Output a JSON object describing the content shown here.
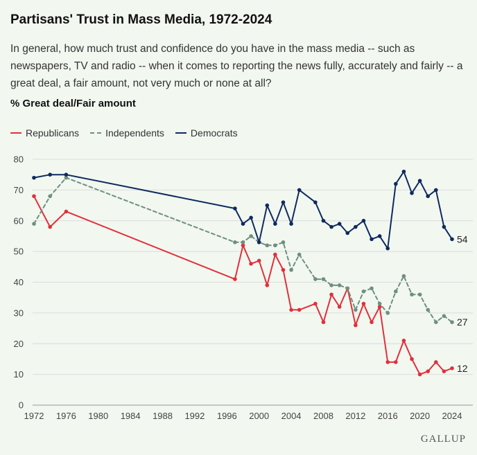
{
  "chart_data": {
    "type": "line",
    "title": "Partisans' Trust in Mass Media, 1972-2024",
    "subtitle": "In general, how much trust and confidence do you have in the mass media -- such as newspapers, TV and radio -- when it comes to reporting the news fully, accurately and fairly -- a great deal, a fair amount, not very much or none at all?",
    "measure_label": "% Great deal/Fair amount",
    "xlabel": "",
    "ylabel": "",
    "x_ticks": [
      1972,
      1976,
      1980,
      1984,
      1988,
      1992,
      1996,
      2000,
      2004,
      2008,
      2012,
      2016,
      2020,
      2024
    ],
    "y_ticks": [
      0,
      10,
      20,
      30,
      40,
      50,
      60,
      70,
      80
    ],
    "xlim": [
      1972,
      2024
    ],
    "ylim": [
      0,
      80
    ],
    "grid": true,
    "legend_position": "top-left",
    "series": [
      {
        "name": "Republicans",
        "color": "#e0303a",
        "style": "solid",
        "end_label": "12",
        "points": [
          [
            1972,
            68
          ],
          [
            1974,
            58
          ],
          [
            1976,
            63
          ],
          [
            1997,
            41
          ],
          [
            1998,
            52
          ],
          [
            1999,
            46
          ],
          [
            2000,
            47
          ],
          [
            2001,
            39
          ],
          [
            2002,
            49
          ],
          [
            2003,
            44
          ],
          [
            2004,
            31
          ],
          [
            2005,
            31
          ],
          [
            2007,
            33
          ],
          [
            2008,
            27
          ],
          [
            2009,
            36
          ],
          [
            2010,
            32
          ],
          [
            2011,
            38
          ],
          [
            2012,
            26
          ],
          [
            2013,
            33
          ],
          [
            2014,
            27
          ],
          [
            2015,
            32
          ],
          [
            2016,
            14
          ],
          [
            2017,
            14
          ],
          [
            2018,
            21
          ],
          [
            2019,
            15
          ],
          [
            2020,
            10
          ],
          [
            2021,
            11
          ],
          [
            2022,
            14
          ],
          [
            2023,
            11
          ],
          [
            2024,
            12
          ]
        ]
      },
      {
        "name": "Independents",
        "color": "#6e8f80",
        "style": "dashed",
        "end_label": "27",
        "points": [
          [
            1972,
            59
          ],
          [
            1974,
            68
          ],
          [
            1976,
            74
          ],
          [
            1997,
            53
          ],
          [
            1998,
            53
          ],
          [
            1999,
            55
          ],
          [
            2000,
            53
          ],
          [
            2001,
            52
          ],
          [
            2002,
            52
          ],
          [
            2003,
            53
          ],
          [
            2004,
            44
          ],
          [
            2005,
            49
          ],
          [
            2007,
            41
          ],
          [
            2008,
            41
          ],
          [
            2009,
            39
          ],
          [
            2010,
            39
          ],
          [
            2011,
            38
          ],
          [
            2012,
            31
          ],
          [
            2013,
            37
          ],
          [
            2014,
            38
          ],
          [
            2015,
            33
          ],
          [
            2016,
            30
          ],
          [
            2017,
            37
          ],
          [
            2018,
            42
          ],
          [
            2019,
            36
          ],
          [
            2020,
            36
          ],
          [
            2021,
            31
          ],
          [
            2022,
            27
          ],
          [
            2023,
            29
          ],
          [
            2024,
            27
          ]
        ]
      },
      {
        "name": "Democrats",
        "color": "#0e2a5f",
        "style": "solid",
        "end_label": "54",
        "points": [
          [
            1972,
            74
          ],
          [
            1974,
            75
          ],
          [
            1976,
            75
          ],
          [
            1997,
            64
          ],
          [
            1998,
            59
          ],
          [
            1999,
            61
          ],
          [
            2000,
            53
          ],
          [
            2001,
            65
          ],
          [
            2002,
            59
          ],
          [
            2003,
            66
          ],
          [
            2004,
            59
          ],
          [
            2005,
            70
          ],
          [
            2007,
            66
          ],
          [
            2008,
            60
          ],
          [
            2009,
            58
          ],
          [
            2010,
            59
          ],
          [
            2011,
            56
          ],
          [
            2012,
            58
          ],
          [
            2013,
            60
          ],
          [
            2014,
            54
          ],
          [
            2015,
            55
          ],
          [
            2016,
            51
          ],
          [
            2017,
            72
          ],
          [
            2018,
            76
          ],
          [
            2019,
            69
          ],
          [
            2020,
            73
          ],
          [
            2021,
            68
          ],
          [
            2022,
            70
          ],
          [
            2023,
            58
          ],
          [
            2024,
            54
          ]
        ]
      }
    ]
  },
  "brand": "GALLUP"
}
